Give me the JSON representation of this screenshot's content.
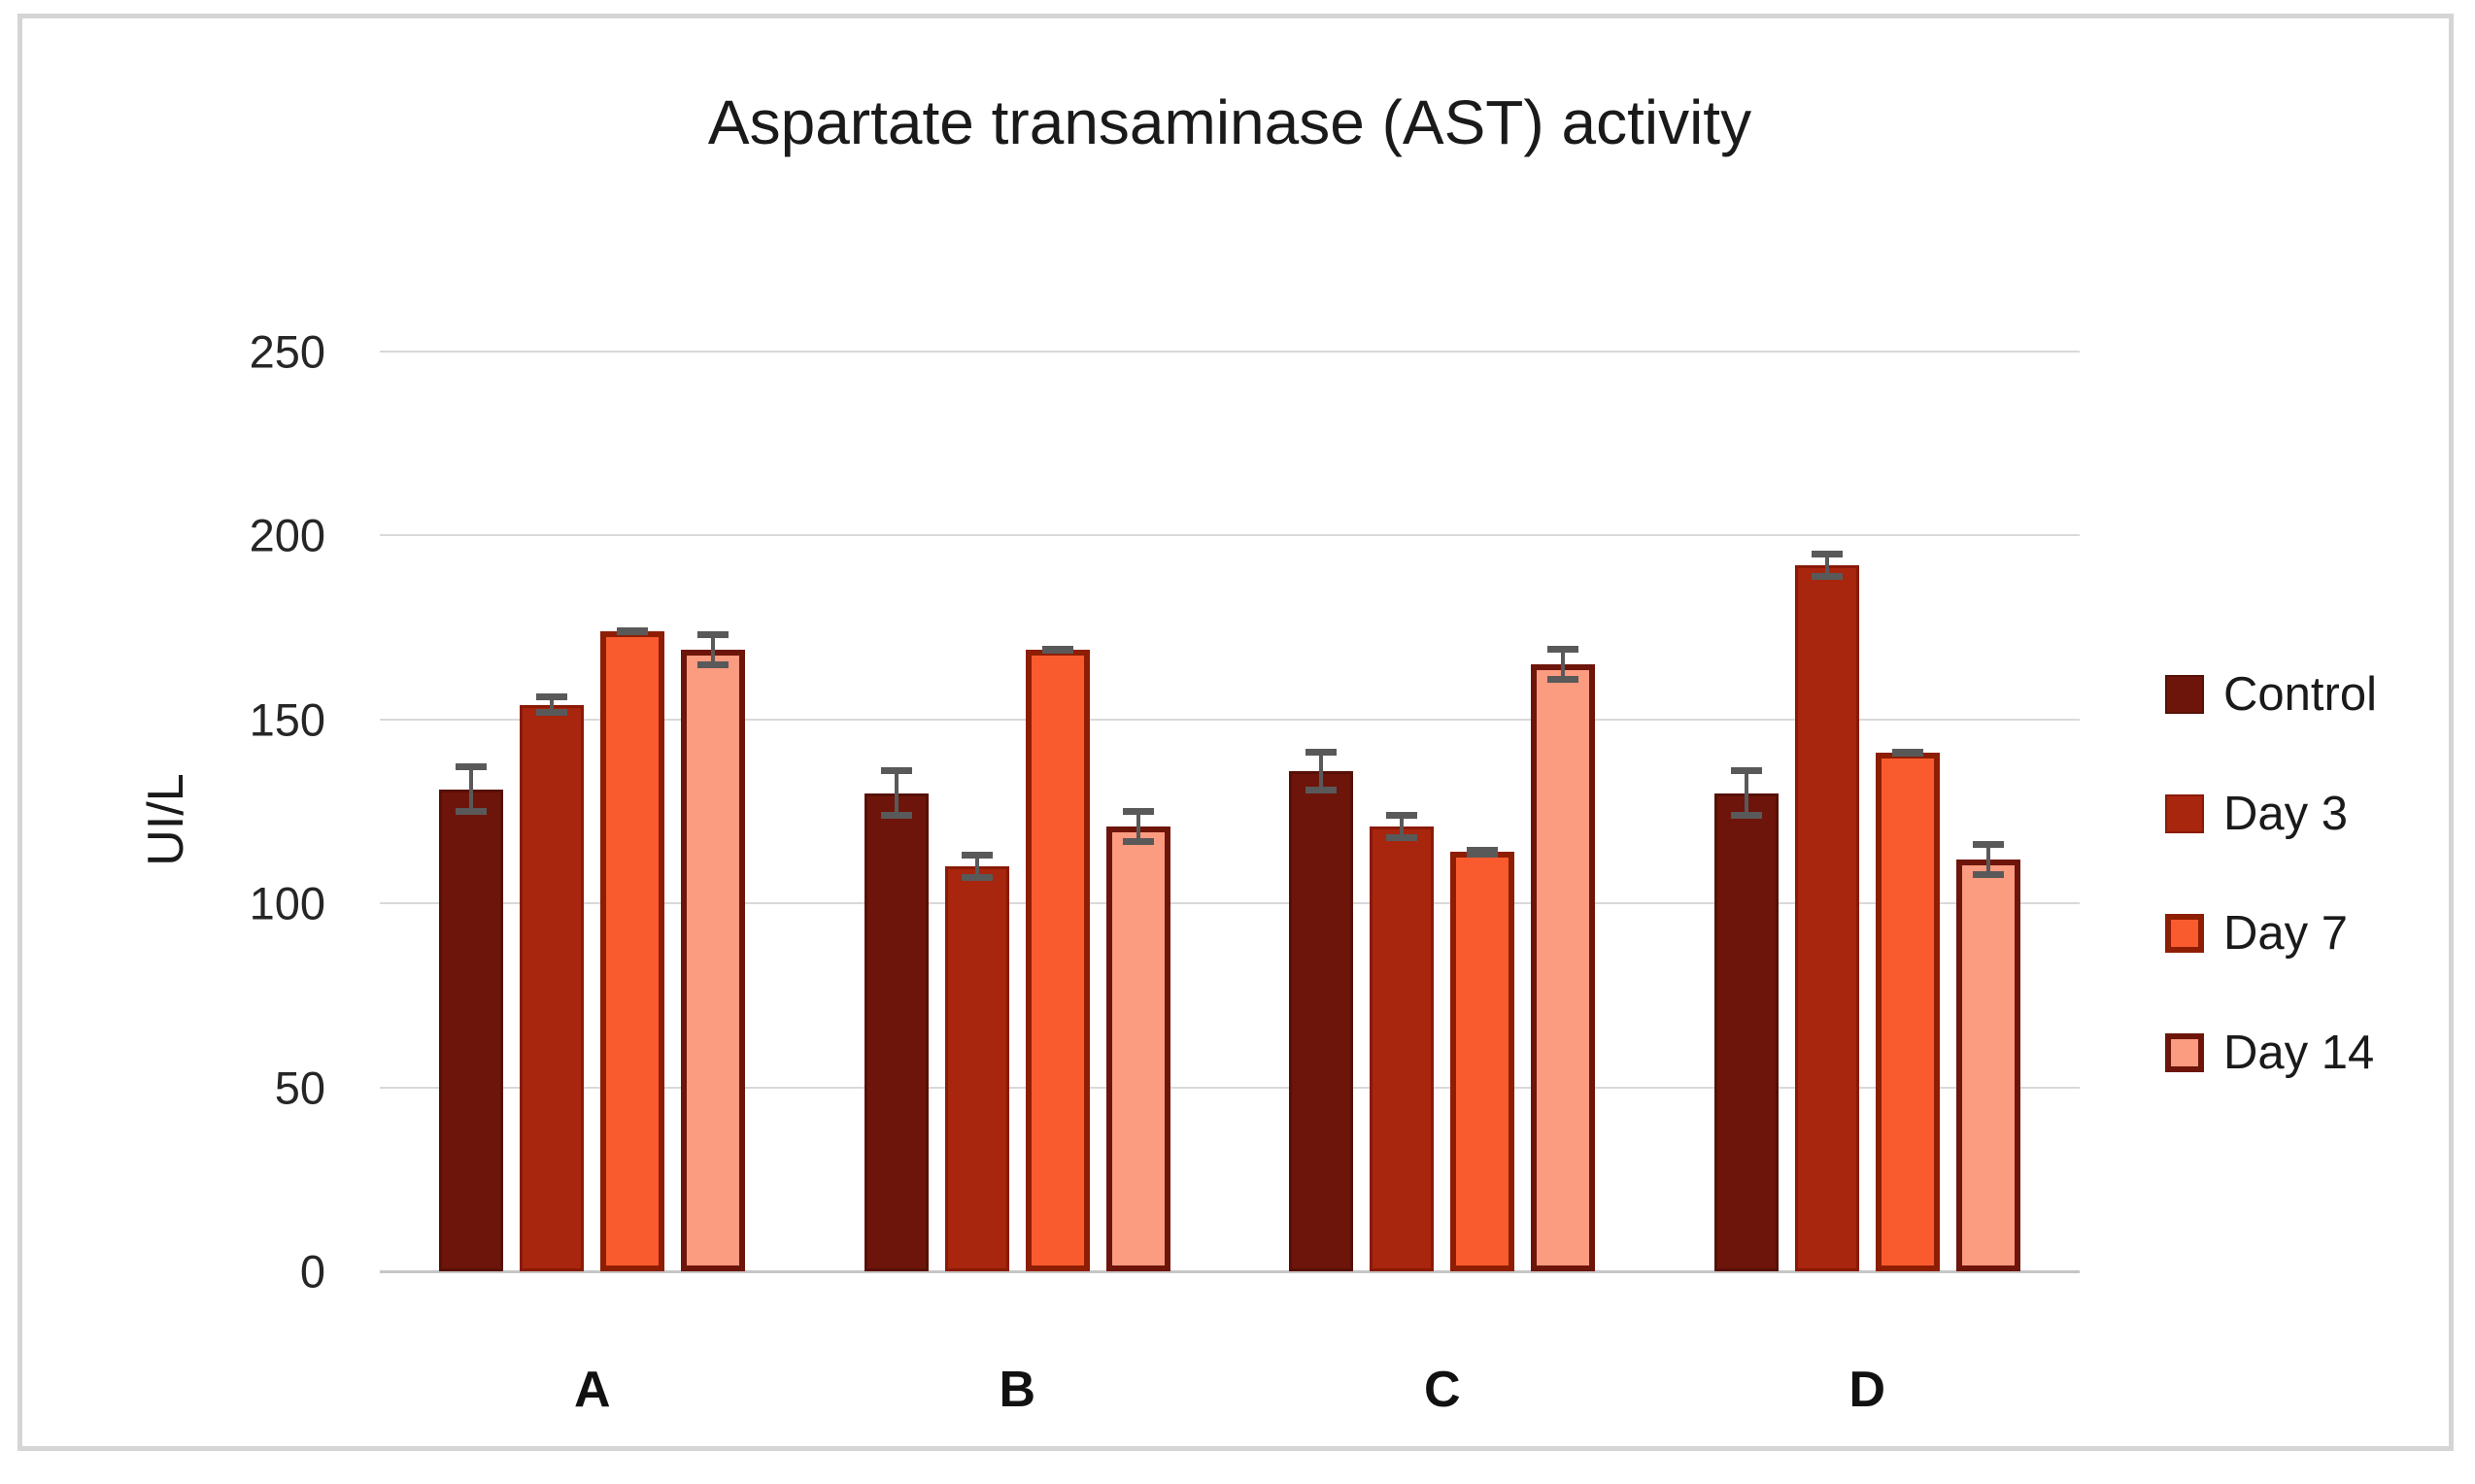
{
  "chart_data": {
    "type": "bar",
    "title": "Aspartate transaminase (AST) activity",
    "xlabel": "",
    "ylabel": "UI/L",
    "categories": [
      "A",
      "B",
      "C",
      "D"
    ],
    "series": [
      {
        "name": "Control",
        "fill": "#6E150B",
        "border": "#571006",
        "border_px": 3,
        "values": [
          131,
          130,
          136,
          130
        ],
        "errors": [
          7,
          7,
          6,
          7
        ]
      },
      {
        "name": "Day 3",
        "fill": "#A8250E",
        "border": "#8A1A05",
        "border_px": 3,
        "values": [
          154,
          110,
          121,
          192
        ],
        "errors": [
          3,
          4,
          4,
          4
        ]
      },
      {
        "name": "Day 7",
        "fill": "#F95B2E",
        "border": "#8E1E03",
        "border_px": 6,
        "values": [
          174,
          169,
          114,
          141
        ],
        "errors": [
          1,
          1,
          1.5,
          1
        ]
      },
      {
        "name": "Day 14",
        "fill": "#FB9B80",
        "border": "#6E150B",
        "border_px": 6,
        "values": [
          169,
          121,
          165,
          112
        ],
        "errors": [
          5,
          5,
          5,
          5
        ]
      }
    ],
    "ylim": [
      0,
      250
    ],
    "yticks": [
      0,
      50,
      100,
      150,
      200,
      250
    ],
    "grid": true,
    "legend_position": "right",
    "gridline_color": "#D9D9D9",
    "error_bar_color": "#595959"
  }
}
